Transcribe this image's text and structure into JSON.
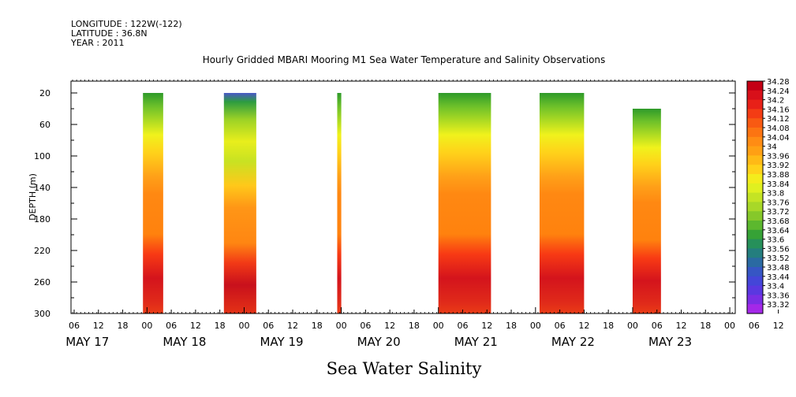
{
  "header": {
    "longitude": "LONGITUDE : 122W(-122)",
    "latitude": "LATITUDE : 36.8N",
    "year": "YEAR : 2011"
  },
  "chart_data": {
    "type": "heatmap",
    "title": "Hourly Gridded MBARI Mooring M1 Sea Water Temperature and Salinity Observations",
    "bottom_title": "Sea Water Salinity",
    "ylabel": "DEPTH (m)",
    "ylim": [
      300,
      5
    ],
    "y_ticks": [
      20,
      60,
      100,
      140,
      180,
      220,
      260,
      300
    ],
    "x_start_hours_label": "06",
    "x_hour_ticks": [
      "06",
      "12",
      "18",
      "00",
      "06",
      "12",
      "18",
      "00",
      "06",
      "12",
      "18",
      "00",
      "06",
      "12",
      "18",
      "00",
      "06",
      "12",
      "18",
      "00",
      "06",
      "12",
      "18",
      "00",
      "06",
      "12",
      "18",
      "00",
      "06",
      "12",
      "18",
      "00"
    ],
    "day_labels": [
      "MAY 17",
      "MAY 18",
      "MAY 19",
      "MAY 20",
      "MAY 21",
      "MAY 22",
      "MAY 23"
    ],
    "colorbar": {
      "min": 33.32,
      "max": 34.28,
      "labels": [
        "34.28",
        "34.24",
        "34.2",
        "34.16",
        "34.12",
        "34.08",
        "34.04",
        "34",
        "33.96",
        "33.92",
        "33.88",
        "33.84",
        "33.8",
        "33.76",
        "33.72",
        "33.68",
        "33.64",
        "33.6",
        "33.56",
        "33.52",
        "33.48",
        "33.44",
        "33.4",
        "33.36",
        "33.32"
      ]
    },
    "data_blocks": [
      {
        "start": "2011-05-17 23:00",
        "end": "2011-05-18 04:00",
        "top_depth": 20
      },
      {
        "start": "2011-05-18 19:00",
        "end": "2011-05-19 03:00",
        "top_depth": 20
      },
      {
        "start": "2011-05-19 23:00",
        "end": "2011-05-20 00:00",
        "top_depth": 20
      },
      {
        "start": "2011-05-21 00:00",
        "end": "2011-05-21 13:00",
        "top_depth": 20
      },
      {
        "start": "2011-05-22 01:00",
        "end": "2011-05-22 12:00",
        "top_depth": 20
      },
      {
        "start": "2011-05-23 00:00",
        "end": "2011-05-23 07:00",
        "top_depth": 40
      }
    ],
    "grid": false
  }
}
